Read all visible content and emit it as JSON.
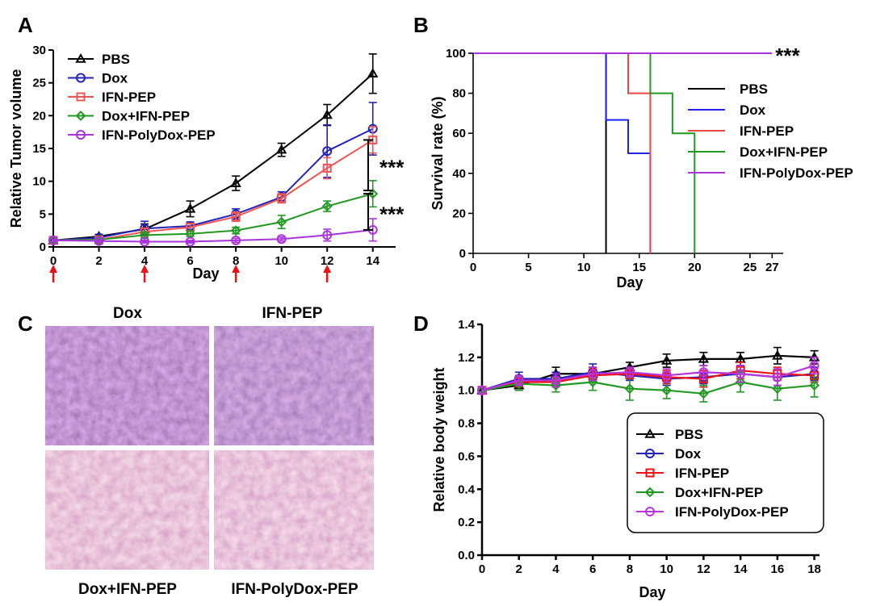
{
  "chart_data": [
    {
      "id": "A",
      "panel_label": "A",
      "type": "line",
      "title": "",
      "xlabel": "Day",
      "ylabel": "Relative Tumor volume",
      "xlim": [
        0,
        15
      ],
      "ylim": [
        0,
        30
      ],
      "xticks": [
        0,
        2,
        4,
        6,
        8,
        10,
        12,
        14
      ],
      "yticks": [
        0,
        5,
        10,
        15,
        20,
        25,
        30
      ],
      "x": [
        0,
        2,
        4,
        6,
        8,
        10,
        12,
        14
      ],
      "series": [
        {
          "name": "PBS",
          "color": "#000000",
          "marker": "triangle",
          "values": [
            1.0,
            1.6,
            2.7,
            5.8,
            9.7,
            14.8,
            20.1,
            26.4
          ],
          "errors": [
            0.2,
            0.3,
            0.8,
            1.2,
            1.1,
            1.0,
            1.6,
            3.0
          ]
        },
        {
          "name": "Dox",
          "color": "#2222bb",
          "marker": "circle",
          "values": [
            1.0,
            1.4,
            2.8,
            3.2,
            5.0,
            7.6,
            14.6,
            18.0
          ],
          "errors": [
            0.2,
            0.3,
            1.1,
            0.6,
            0.8,
            0.8,
            4.0,
            4.0
          ]
        },
        {
          "name": "IFN-PEP",
          "color": "#ee5555",
          "marker": "square",
          "values": [
            1.0,
            1.1,
            2.3,
            3.0,
            4.6,
            7.4,
            12.0,
            16.3
          ],
          "errors": [
            0.2,
            0.2,
            0.5,
            0.6,
            0.7,
            0.7,
            1.6,
            2.0
          ]
        },
        {
          "name": "Dox+IFN-PEP",
          "color": "#229922",
          "marker": "diamond",
          "values": [
            1.0,
            1.1,
            1.8,
            2.0,
            2.5,
            3.8,
            6.2,
            8.1
          ],
          "errors": [
            0.2,
            0.2,
            0.4,
            0.4,
            0.5,
            1.0,
            0.8,
            2.0
          ]
        },
        {
          "name": "IFN-PolyDox-PEP",
          "color": "#aa33dd",
          "marker": "circle",
          "values": [
            1.0,
            0.9,
            0.8,
            0.8,
            1.0,
            1.2,
            1.8,
            2.6
          ],
          "errors": [
            0.2,
            0.2,
            0.2,
            0.2,
            0.3,
            0.3,
            0.9,
            1.7
          ]
        }
      ],
      "arrows_at_days": [
        0,
        4,
        8,
        12
      ],
      "arrow_color": "#ee1111",
      "significance": [
        {
          "label": "***",
          "y_from": 16.3,
          "y_to": 8.6
        },
        {
          "label": "***",
          "y_from": 8.1,
          "y_to": 2.6
        }
      ],
      "legend_position": "top-left"
    },
    {
      "id": "B",
      "panel_label": "B",
      "type": "line",
      "subtype": "survival-step",
      "title": "",
      "xlabel": "Day",
      "ylabel": "Survival rate (%)",
      "xlim": [
        0,
        28
      ],
      "ylim": [
        0,
        100
      ],
      "xticks": [
        0,
        5,
        10,
        15,
        20,
        25,
        27
      ],
      "yticks": [
        0,
        20,
        40,
        60,
        80,
        100
      ],
      "series": [
        {
          "name": "PBS",
          "color": "#000000",
          "steps": [
            [
              0,
              100
            ],
            [
              12,
              100
            ],
            [
              12,
              0
            ]
          ]
        },
        {
          "name": "Dox",
          "color": "#2222ee",
          "steps": [
            [
              0,
              100
            ],
            [
              12,
              100
            ],
            [
              12,
              66.7
            ],
            [
              14,
              66.7
            ],
            [
              14,
              50
            ],
            [
              16,
              50
            ],
            [
              16,
              0
            ]
          ]
        },
        {
          "name": "IFN-PEP",
          "color": "#ee4444",
          "steps": [
            [
              0,
              100
            ],
            [
              14,
              100
            ],
            [
              14,
              80
            ],
            [
              16,
              80
            ],
            [
              16,
              0
            ]
          ]
        },
        {
          "name": "Dox+IFN-PEP",
          "color": "#229922",
          "steps": [
            [
              0,
              100
            ],
            [
              16,
              100
            ],
            [
              16,
              80
            ],
            [
              18,
              80
            ],
            [
              18,
              60
            ],
            [
              20,
              60
            ],
            [
              20,
              0
            ]
          ]
        },
        {
          "name": "IFN-PolyDox-PEP",
          "color": "#aa33dd",
          "steps": [
            [
              0,
              100
            ],
            [
              27,
              100
            ]
          ]
        }
      ],
      "significance": [
        {
          "label": "***",
          "x": 27,
          "y": 100
        }
      ],
      "legend_position": "right"
    },
    {
      "id": "D",
      "panel_label": "D",
      "type": "line",
      "title": "",
      "xlabel": "Day",
      "ylabel": "Relative body weight",
      "xlim": [
        0,
        18.5
      ],
      "ylim": [
        0,
        1.4
      ],
      "xticks": [
        0,
        2,
        4,
        6,
        8,
        10,
        12,
        14,
        16,
        18
      ],
      "yticks": [
        "0.0",
        "0.2",
        "0.4",
        "0.6",
        "0.8",
        "1.0",
        "1.2",
        "1.4"
      ],
      "x": [
        0,
        2,
        4,
        6,
        8,
        10,
        12,
        14,
        16,
        18
      ],
      "series": [
        {
          "name": "PBS",
          "color": "#000000",
          "marker": "triangle",
          "values": [
            1.0,
            1.03,
            1.1,
            1.1,
            1.14,
            1.18,
            1.19,
            1.19,
            1.21,
            1.2
          ],
          "errors": [
            0.02,
            0.03,
            0.04,
            0.04,
            0.03,
            0.04,
            0.04,
            0.04,
            0.05,
            0.04
          ]
        },
        {
          "name": "Dox",
          "color": "#2222bb",
          "marker": "circle",
          "values": [
            1.0,
            1.07,
            1.07,
            1.11,
            1.09,
            1.07,
            1.08,
            1.1,
            1.08,
            1.1
          ],
          "errors": [
            0.02,
            0.04,
            0.04,
            0.05,
            0.03,
            0.04,
            0.04,
            0.05,
            0.05,
            0.04
          ]
        },
        {
          "name": "IFN-PEP",
          "color": "#ee1111",
          "marker": "square",
          "values": [
            1.0,
            1.05,
            1.05,
            1.09,
            1.1,
            1.08,
            1.07,
            1.12,
            1.1,
            1.09
          ],
          "errors": [
            0.02,
            0.03,
            0.03,
            0.04,
            0.03,
            0.04,
            0.05,
            0.05,
            0.04,
            0.04
          ]
        },
        {
          "name": "Dox+IFN-PEP",
          "color": "#229922",
          "marker": "diamond",
          "values": [
            1.0,
            1.04,
            1.03,
            1.05,
            1.01,
            1.0,
            0.98,
            1.05,
            1.01,
            1.03
          ],
          "errors": [
            0.02,
            0.04,
            0.04,
            0.05,
            0.07,
            0.05,
            0.05,
            0.06,
            0.07,
            0.07
          ]
        },
        {
          "name": "IFN-PolyDox-PEP",
          "color": "#bb33dd",
          "marker": "circle",
          "values": [
            1.0,
            1.06,
            1.06,
            1.1,
            1.11,
            1.09,
            1.11,
            1.1,
            1.08,
            1.15
          ],
          "errors": [
            0.02,
            0.03,
            0.04,
            0.04,
            0.03,
            0.04,
            0.04,
            0.05,
            0.05,
            0.05
          ]
        }
      ],
      "legend_position": "bottom-right"
    }
  ],
  "panel_c": {
    "panel_label": "C",
    "images": [
      {
        "label": "Dox",
        "stain": "dense-purple"
      },
      {
        "label": "IFN-PEP",
        "stain": "dense-purple"
      },
      {
        "label": "Dox+IFN-PEP",
        "stain": "pink"
      },
      {
        "label": "IFN-PolyDox-PEP",
        "stain": "pink"
      }
    ]
  }
}
